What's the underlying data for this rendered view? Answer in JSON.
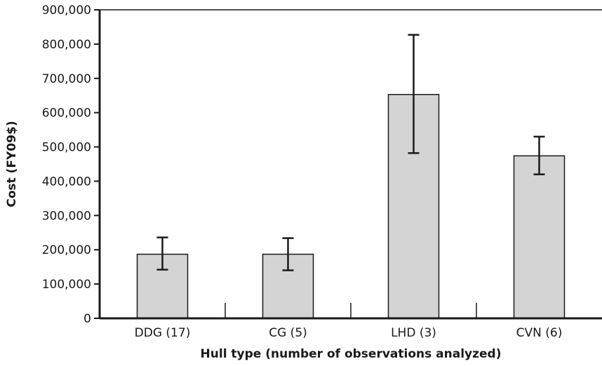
{
  "chart_data": {
    "type": "bar",
    "title": "",
    "xlabel": "Hull type (number of observations analyzed)",
    "ylabel": "Cost (FY09$)",
    "categories": [
      "DDG (17)",
      "CG (5)",
      "LHD (3)",
      "CVN (6)"
    ],
    "values": [
      187000,
      187000,
      653000,
      474000
    ],
    "error_low": [
      142000,
      140000,
      482000,
      420000
    ],
    "error_high": [
      236000,
      234000,
      827000,
      530000
    ],
    "ylim": [
      0,
      900000
    ],
    "yticks": [
      0,
      100000,
      200000,
      300000,
      400000,
      500000,
      600000,
      700000,
      800000,
      900000
    ],
    "ytick_labels": [
      "0",
      "100,000",
      "200,000",
      "300,000",
      "400,000",
      "500,000",
      "600,000",
      "700,000",
      "800,000",
      "900,000"
    ],
    "grid": false,
    "legend": "none",
    "colors": {
      "bar_fill": "#d4d4d4",
      "bar_stroke": "#1a1a1a",
      "axis": "#1a1a1a",
      "error_bar": "#1a1a1a"
    }
  }
}
